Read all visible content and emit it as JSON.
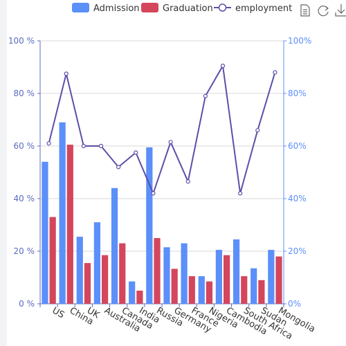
{
  "legend": {
    "items": [
      {
        "label": "Admission",
        "color": "#5b8ff9",
        "kind": "bar"
      },
      {
        "label": "Graduation",
        "color": "#d4465c",
        "kind": "bar"
      },
      {
        "label": "employment",
        "color": "#5b4fa8",
        "kind": "line"
      }
    ]
  },
  "toolbox": {
    "icons": [
      "data-view-icon",
      "restore-icon",
      "save-image-icon"
    ]
  },
  "chart_data": {
    "type": "bar",
    "categories": [
      "US",
      "China",
      "UK",
      "Australia",
      "Canada",
      "India",
      "Russia",
      "Germany",
      "France",
      "Nigeria",
      "Cambodia",
      "South Africa",
      "Sudan",
      "Mongolia"
    ],
    "series": [
      {
        "name": "Admission",
        "type": "bar",
        "color": "#5b8ff9",
        "values": [
          54,
          69,
          25.5,
          31,
          44,
          8.5,
          59.5,
          21.5,
          23,
          10.5,
          20.5,
          24.5,
          13.5,
          20.5
        ]
      },
      {
        "name": "Graduation",
        "type": "bar",
        "color": "#d4465c",
        "values": [
          33,
          60.5,
          15.5,
          18.5,
          23,
          5,
          25,
          13.3,
          10.5,
          8.5,
          18.5,
          10.5,
          9,
          18
        ]
      },
      {
        "name": "employment",
        "type": "line",
        "color": "#5b4fa8",
        "axis": "right",
        "values": [
          61,
          87.5,
          60,
          60,
          52,
          57.5,
          42,
          61.5,
          46.5,
          79,
          90.5,
          42,
          66,
          88
        ]
      }
    ],
    "y_left": {
      "ticks": [
        "0 %",
        "20 %",
        "40 %",
        "60 %",
        "80 %",
        "100 %"
      ],
      "range": [
        0,
        100
      ]
    },
    "y_right": {
      "ticks": [
        "0%",
        "20%",
        "40%",
        "60%",
        "80%",
        "100%"
      ],
      "range": [
        0,
        100
      ]
    },
    "grid": true,
    "legend_position": "top"
  }
}
